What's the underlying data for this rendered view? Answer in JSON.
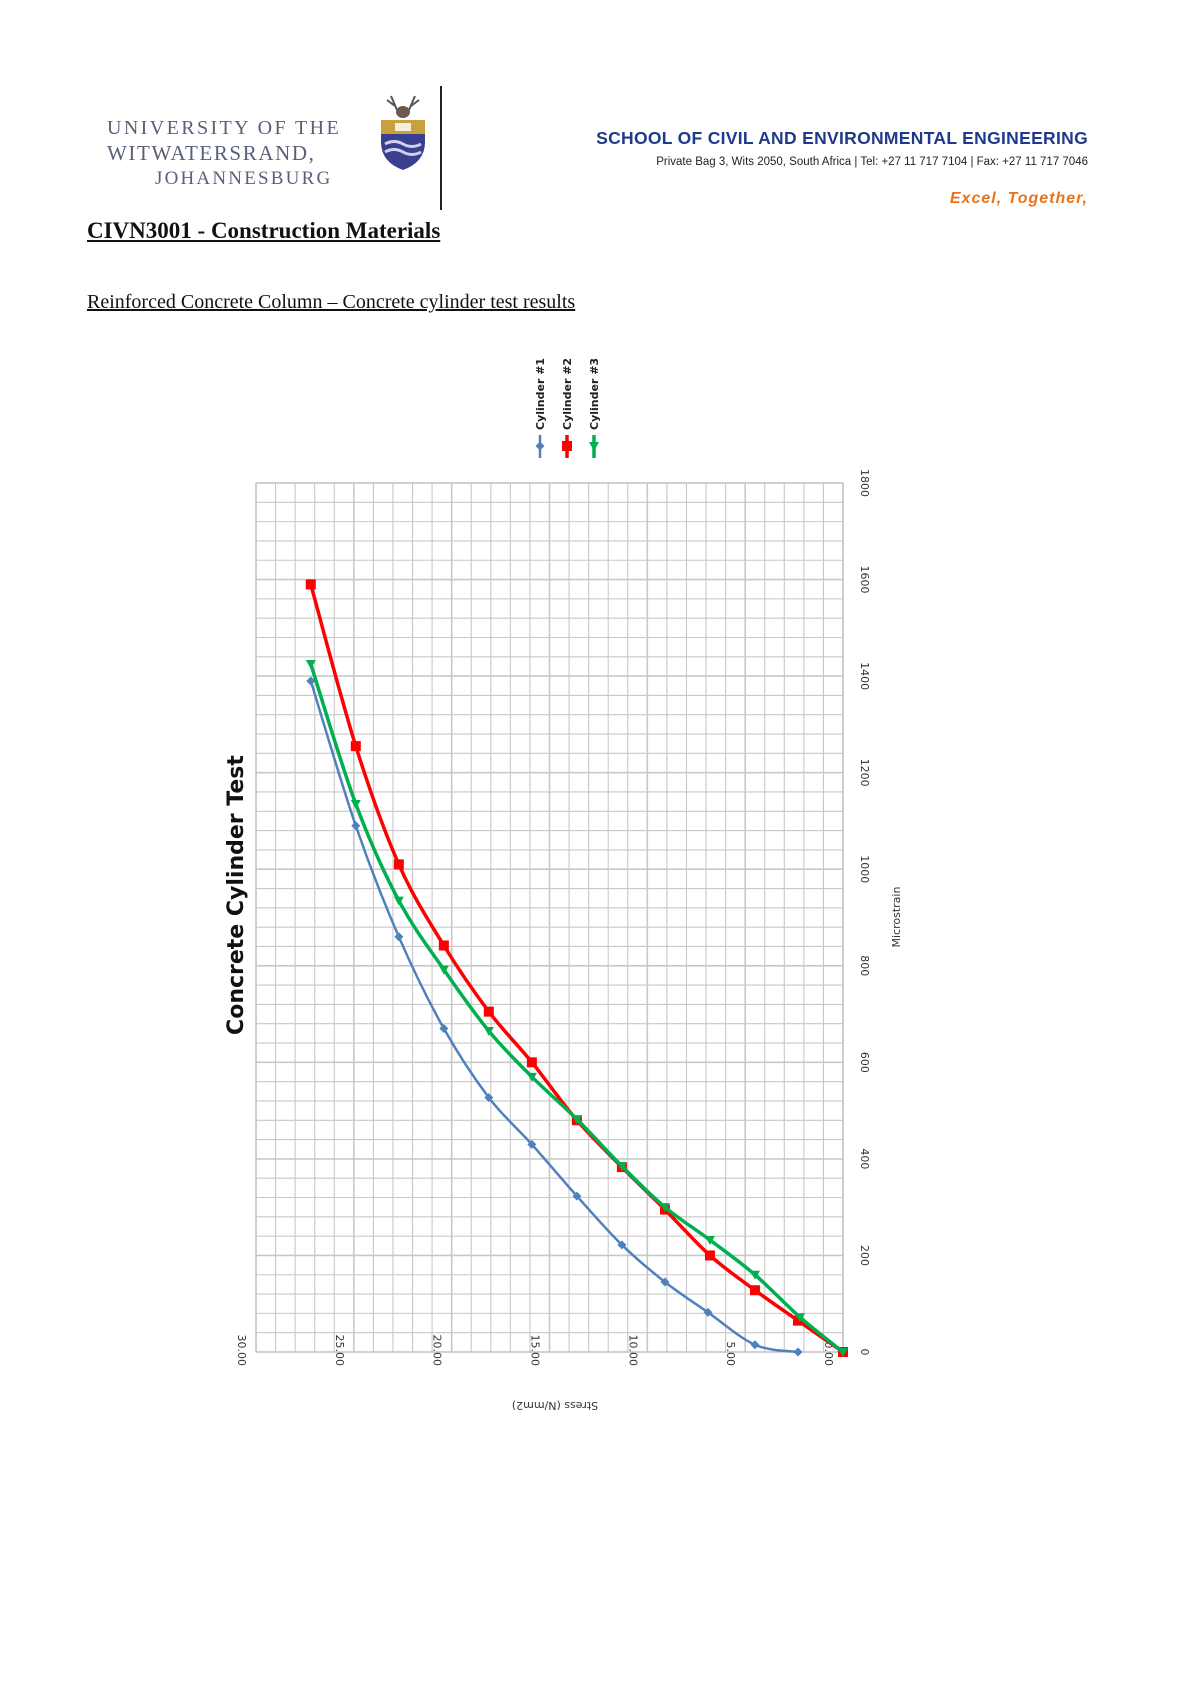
{
  "header": {
    "university_lines": [
      "UNIVERSITY OF THE",
      "WITWATERSRAND,",
      "JOHANNESBURG"
    ],
    "school": "SCHOOL OF CIVIL AND ENVIRONMENTAL ENGINEERING",
    "address": "Private Bag 3, Wits 2050, South Africa | Tel: +27 11 717 7104 | Fax: +27 11 717 7046",
    "motto": "Excel, Together,"
  },
  "document": {
    "course_title": "CIVN3001 - Construction Materials",
    "section_title": "Reinforced Concrete Column – Concrete cylinder test results"
  },
  "colors": {
    "cylinder1": "#4f81bd",
    "cylinder2": "#ff0000",
    "cylinder3": "#00b050",
    "grid": "#c0c0c0",
    "school_blue": "#1f3a8a",
    "motto_orange": "#e8731c"
  },
  "chart_data": {
    "type": "line",
    "orientation": "rotated 90 degrees counter-clockwise on page",
    "title": "Concrete Cylinder Test",
    "xlabel": "Stress (N/mm2)",
    "ylabel": "Microstrain",
    "xlim": [
      0,
      30
    ],
    "ylim": [
      0,
      1800
    ],
    "x_ticks": [
      "0.00",
      "5.00",
      "10.00",
      "15.00",
      "20.00",
      "25.00",
      "30.00"
    ],
    "y_ticks": [
      "0",
      "200",
      "400",
      "600",
      "800",
      "1000",
      "1200",
      "1400",
      "1600",
      "1800"
    ],
    "grid": true,
    "legend_position": "top",
    "series": [
      {
        "name": "Cylinder #1",
        "marker": "diamond",
        "color": "#4f81bd",
        "points": [
          [
            2.3,
            0
          ],
          [
            4.5,
            15
          ],
          [
            6.9,
            82
          ],
          [
            9.1,
            145
          ],
          [
            11.3,
            222
          ],
          [
            13.6,
            323
          ],
          [
            15.9,
            430
          ],
          [
            18.1,
            527
          ],
          [
            20.4,
            670
          ],
          [
            22.7,
            860
          ],
          [
            24.9,
            1090
          ],
          [
            27.2,
            1390
          ]
        ]
      },
      {
        "name": "Cylinder #2",
        "marker": "square",
        "color": "#ff0000",
        "points": [
          [
            0,
            0
          ],
          [
            2.3,
            65
          ],
          [
            4.5,
            128
          ],
          [
            6.8,
            200
          ],
          [
            9.1,
            295
          ],
          [
            11.3,
            383
          ],
          [
            13.6,
            480
          ],
          [
            15.9,
            600
          ],
          [
            18.1,
            705
          ],
          [
            20.4,
            842
          ],
          [
            22.7,
            1010
          ],
          [
            24.9,
            1255
          ],
          [
            27.2,
            1590
          ]
        ]
      },
      {
        "name": "Cylinder #3",
        "marker": "triangle",
        "color": "#00b050",
        "points": [
          [
            0,
            0
          ],
          [
            2.2,
            72
          ],
          [
            4.5,
            160
          ],
          [
            6.8,
            232
          ],
          [
            9.1,
            300
          ],
          [
            11.3,
            385
          ],
          [
            13.6,
            482
          ],
          [
            15.9,
            570
          ],
          [
            18.1,
            665
          ],
          [
            20.4,
            792
          ],
          [
            22.7,
            935
          ],
          [
            24.9,
            1135
          ],
          [
            27.2,
            1425
          ]
        ]
      }
    ]
  }
}
